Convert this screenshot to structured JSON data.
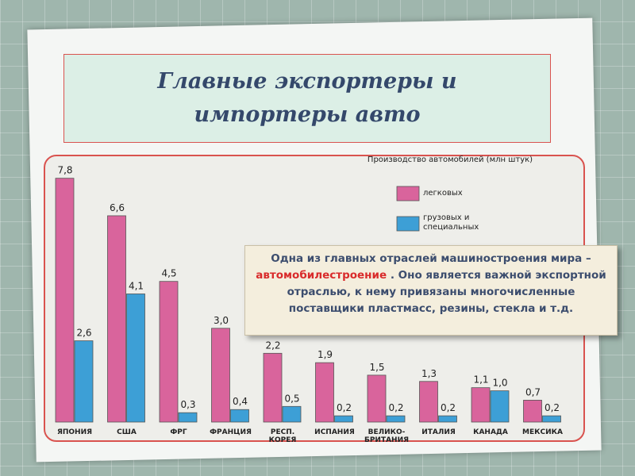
{
  "chart_data": {
    "type": "bar",
    "title": "Главные экспортеры и импортеры авто",
    "legend_title": "Производство автомобилей (млн штук)",
    "categories": [
      "ЯПОНИЯ",
      "США",
      "ФРГ",
      "ФРАНЦИЯ",
      "РЕСП. КОРЕЯ",
      "ИСПАНИЯ",
      "ВЕЛИКО-БРИТАНИЯ",
      "ИТАЛИЯ",
      "КАНАДА",
      "МЕКСИКА"
    ],
    "series": [
      {
        "name": "легковых",
        "color": "#d9649c",
        "values": [
          7.8,
          6.6,
          4.5,
          3.0,
          2.2,
          1.9,
          1.5,
          1.3,
          1.1,
          0.7
        ],
        "value_labels": [
          "7,8",
          "6,6",
          "4,5",
          "3,0",
          "2,2",
          "1,9",
          "1,5",
          "1,3",
          "1,1",
          "0,7"
        ]
      },
      {
        "name": "грузовых и специальных",
        "color": "#3d9fd6",
        "values": [
          2.6,
          4.1,
          0.3,
          0.4,
          0.5,
          0.2,
          0.2,
          0.2,
          1.0,
          0.2
        ],
        "value_labels": [
          "2,6",
          "4,1",
          "0,3",
          "0,4",
          "0,5",
          "0,2",
          "0,2",
          "0,2",
          "1,0",
          "0,2"
        ]
      }
    ]
  },
  "note": {
    "before": "Одна из главных отраслей машиностроения мира – ",
    "highlight": "автомобилестроение",
    "after": " . Оно является важной экспортной отраслью, к нему привязаны многочисленные  поставщики пластмасс, резины, стекла и т.д."
  }
}
